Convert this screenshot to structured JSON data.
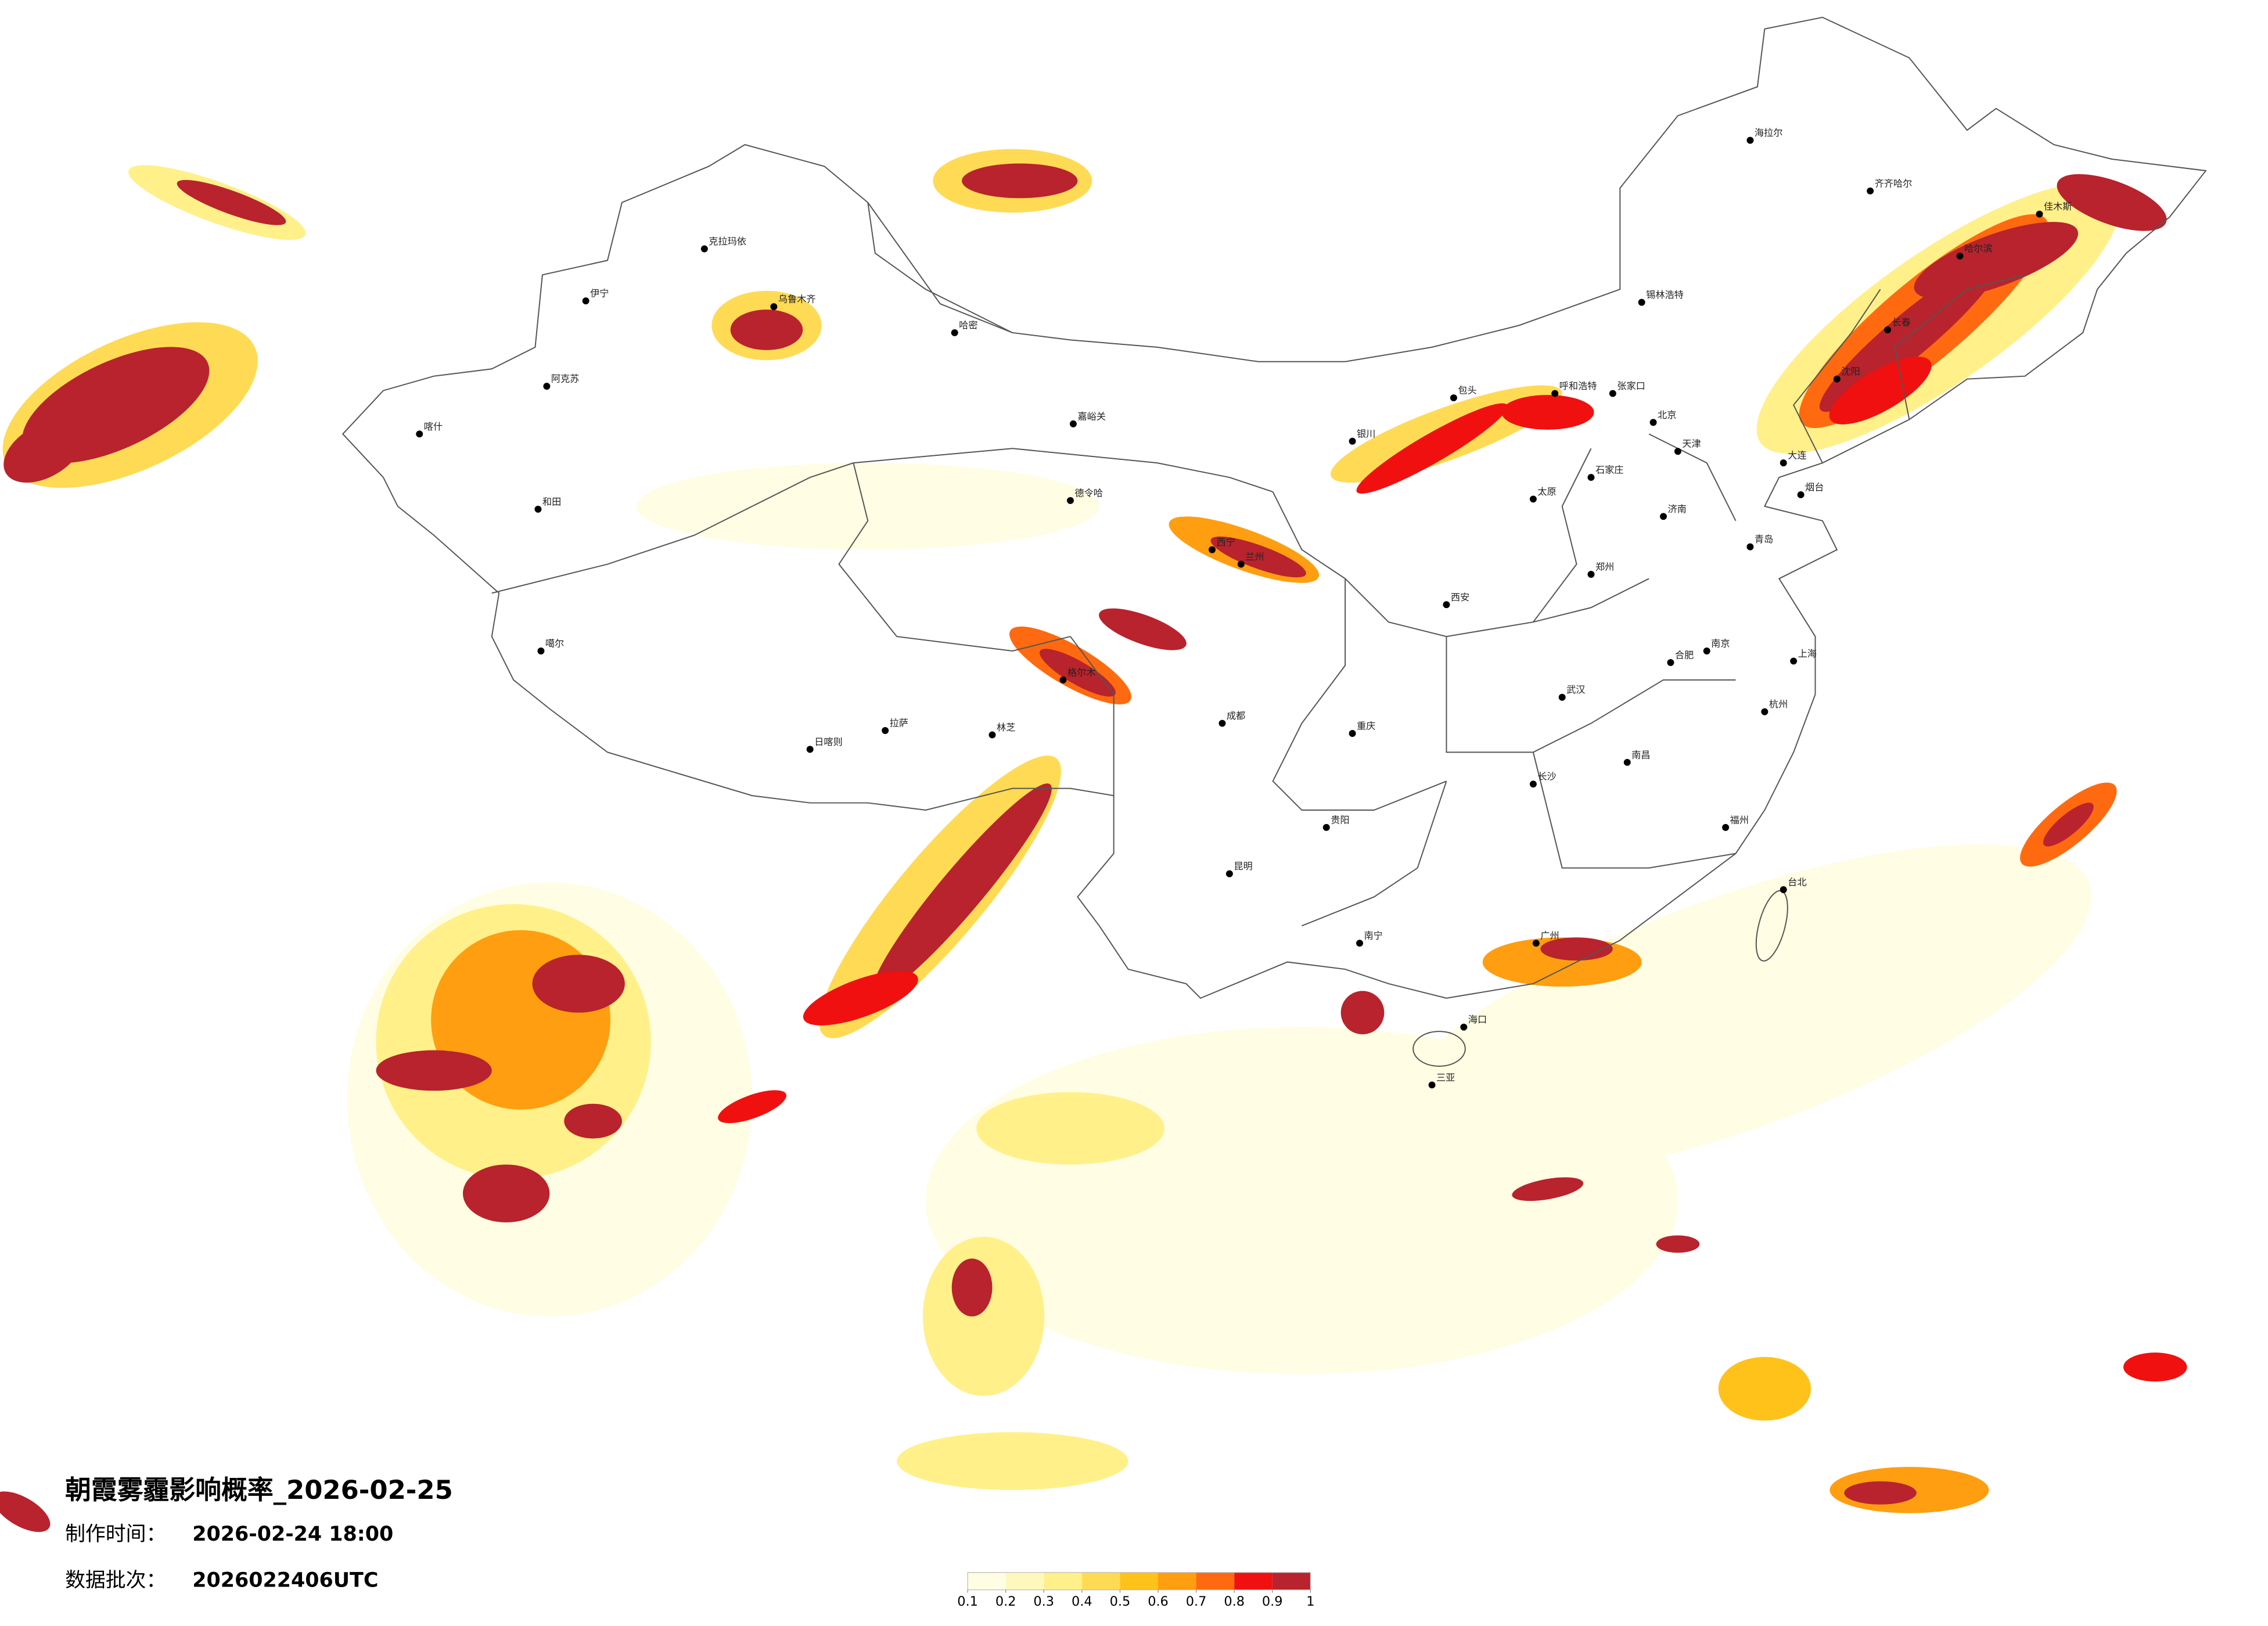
{
  "title": "朝霞雾霾影响概率_2026-02-25",
  "info": [
    {
      "label": "制作时间：",
      "value": "2026-02-24 18:00"
    },
    {
      "label": "数据批次：",
      "value": "2026022406UTC"
    }
  ],
  "legend": {
    "colors": [
      "#fffde3",
      "#fff8bd",
      "#fff08a",
      "#ffdb55",
      "#ffc21a",
      "#ff9e10",
      "#ff6a10",
      "#f01010",
      "#b8232d"
    ],
    "ticks": [
      0.1,
      0.2,
      0.3,
      0.4,
      0.5,
      0.6,
      0.7,
      0.8,
      0.9,
      1
    ]
  },
  "cities": [
    "乌鲁木齐",
    "伊宁",
    "克拉玛依",
    "和田",
    "喀什",
    "哈密",
    "拉萨",
    "日喀则",
    "噶尔",
    "林芝",
    "嘉峪关",
    "西宁",
    "兰州",
    "银川",
    "包头",
    "呼和浩特",
    "张家口",
    "北京",
    "天津",
    "石家庄",
    "太原",
    "济南",
    "青岛",
    "烟台",
    "郑州",
    "西安",
    "成都",
    "重庆",
    "贵阳",
    "昆明",
    "南宁",
    "广州",
    "海口",
    "三亚",
    "福州",
    "杭州",
    "上海",
    "南京",
    "合肥",
    "武汉",
    "长沙",
    "南昌",
    "台北",
    "沈阳",
    "长春",
    "哈尔滨",
    "齐齐哈尔",
    "海拉尔",
    "锡林浩特",
    "佳木斯",
    "大连",
    "阿克苏",
    "德令哈",
    "格尔木"
  ]
}
